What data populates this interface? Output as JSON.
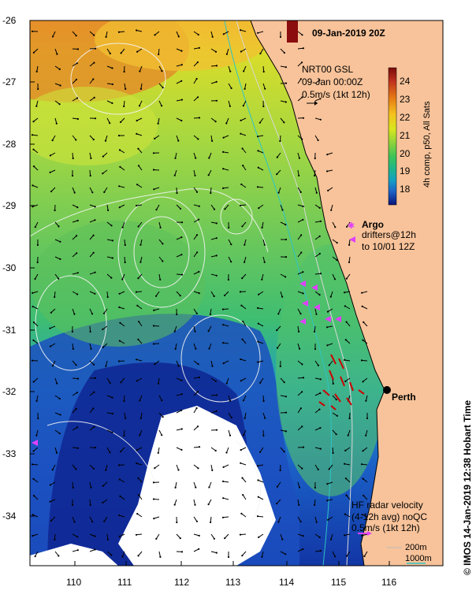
{
  "title": "09-Jan-2019 20Z",
  "product": {
    "line1": "NRT00 GSL",
    "line2": "09-Jan 00:00Z",
    "line3": "0.5m/s (1kt 12h)"
  },
  "colorbar": {
    "label": "4h comp, p50, All Sats",
    "ticks": [
      "24",
      "23",
      "22",
      "21",
      "20",
      "19",
      "18"
    ],
    "colors": [
      "#7a0a0a",
      "#c0321e",
      "#e67a14",
      "#f5c31e",
      "#d7e61e",
      "#8cd23c",
      "#3cc35a",
      "#1eb48c",
      "#14a0c3",
      "#1e64c8",
      "#1432a0",
      "#0a147a"
    ]
  },
  "argo": {
    "label": "Argo",
    "drifters_line1": "drifters@12h",
    "drifters_line2": "to 10/01 12Z"
  },
  "city": {
    "name": "Perth"
  },
  "hf_radar": {
    "line1": "HF radar velocity",
    "line2": "(4-12h avg) noQC",
    "line3": "0.5m/s (1kt 12h)"
  },
  "bathymetry": {
    "contour1": "200m",
    "contour2": "1000m",
    "color1": "#bbbbbb",
    "color2": "#2ec4c4"
  },
  "lat_ticks": [
    "-26",
    "-27",
    "-28",
    "-29",
    "-30",
    "-31",
    "-32",
    "-33",
    "-34"
  ],
  "lon_ticks": [
    "110",
    "111",
    "112",
    "113",
    "114",
    "115",
    "116"
  ],
  "credit": "© IMOS 14-Jan-2019 12:38 Hobart Time",
  "colors": {
    "land": "#f8c39a",
    "argo": "#e040fb",
    "hf": "#cc0000"
  }
}
